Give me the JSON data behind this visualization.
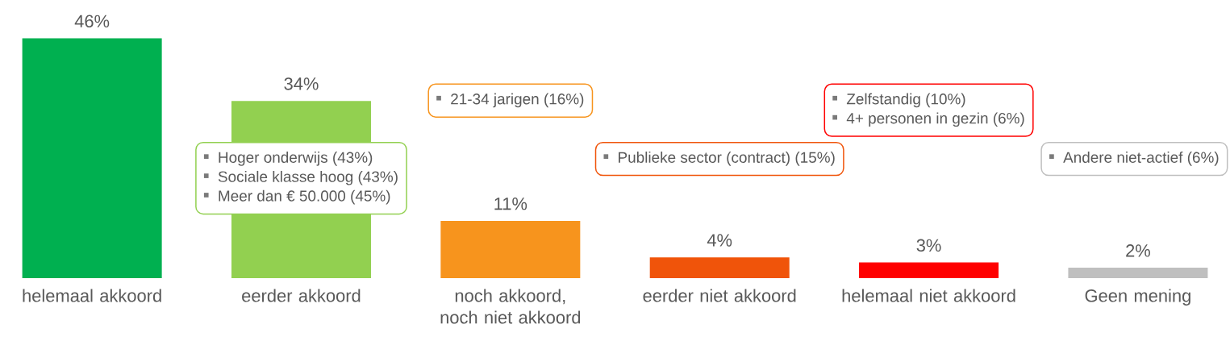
{
  "chart_data": {
    "type": "bar",
    "categories": [
      "helemaal akkoord",
      "eerder akkoord",
      "noch akkoord, noch niet akkoord",
      "eerder niet akkoord",
      "helemaal niet akkoord",
      "Geen mening"
    ],
    "values": [
      46,
      34,
      11,
      4,
      3,
      2
    ],
    "value_labels": [
      "46%",
      "34%",
      "11%",
      "4%",
      "3%",
      "2%"
    ],
    "colors": [
      "#00b050",
      "#92d050",
      "#f7941d",
      "#f0540a",
      "#ff0000",
      "#bfbfbf"
    ],
    "tick_labels": "x",
    "annotations": [
      "Hoger onderwijs (43%)",
      "Sociale klasse hoog (43%)",
      "Meer dan € 50.000 (45%)",
      "21-34 jarigen (16%)",
      "Publieke sector (contract) (15%)",
      "Zelfstandig (10%)",
      "4+ personen in gezin (6%)",
      "Andere niet-actief (6%)"
    ]
  }
}
